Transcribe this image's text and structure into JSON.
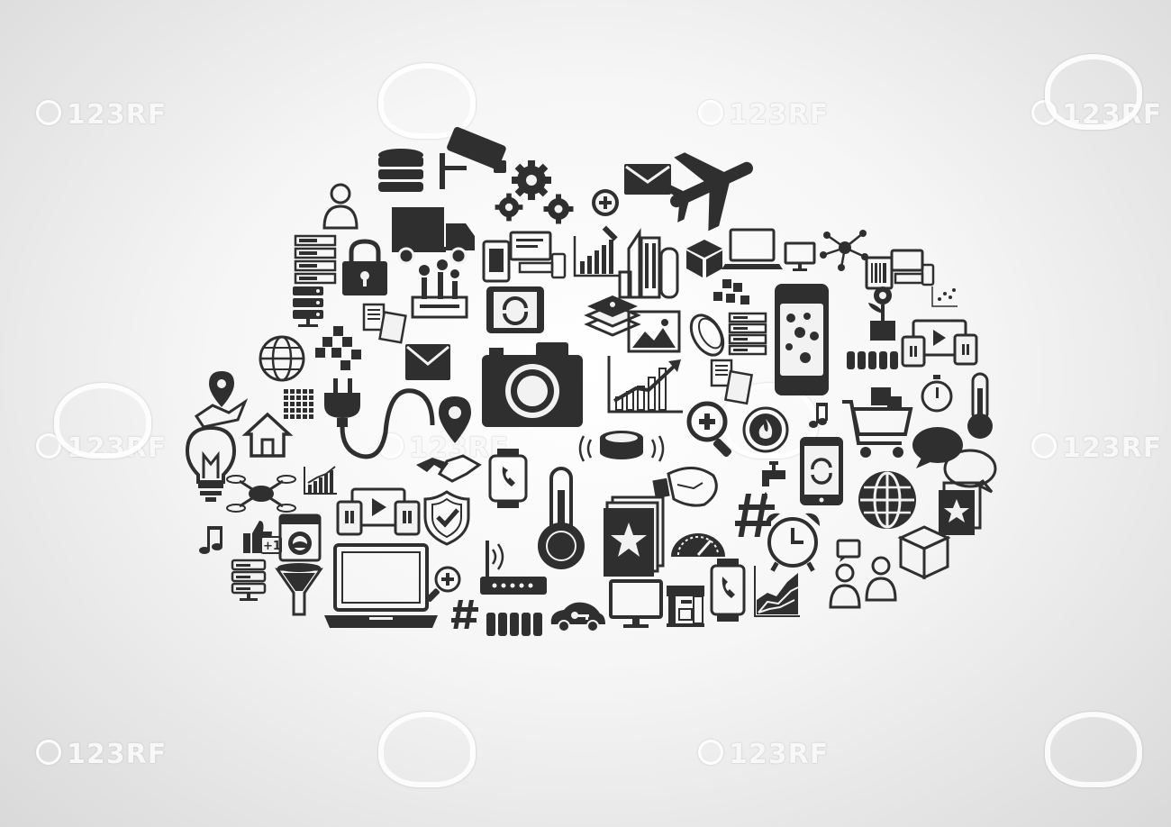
{
  "watermark": {
    "text": "123RF",
    "items": [
      {
        "text": "123RF"
      },
      {
        "text": "123RF"
      },
      {
        "text": "123RF"
      },
      {
        "text": "123RF"
      },
      {
        "text": "123RF"
      },
      {
        "text": "123RF"
      },
      {
        "text": "123RF"
      },
      {
        "text": "123RF"
      }
    ]
  },
  "colors": {
    "icon": "#2f2f2f",
    "background_center": "#ffffff",
    "background_edge": "#d9d9d9"
  },
  "icons": [
    "database-icon",
    "cctv-camera-icon",
    "gear-icon",
    "gear-icon",
    "gear-icon",
    "envelope-icon",
    "airplane-icon",
    "user-icon",
    "delivery-truck-icon",
    "zoom-in-icon",
    "devices-icon",
    "bar-chart-icon",
    "city-buildings-icon",
    "package-icon",
    "laptop-icon",
    "monitor-icon",
    "network-hub-icon",
    "server-rack-icon",
    "padlock-icon",
    "factory-icon",
    "barcode-devices-icon",
    "tablet-sync-icon",
    "layers-icon",
    "cubes-icon",
    "smartwatch-icon",
    "plant-icon",
    "scatter-chart-icon",
    "globe-icon",
    "documents-icon",
    "photo-icon",
    "coin-icon",
    "media-player-icon",
    "envelope-icon",
    "photo-camera-icon",
    "growth-chart-icon",
    "battery-icon",
    "map-location-icon",
    "plug-cable-icon",
    "location-pin-icon",
    "zoom-in-icon",
    "fire-sensor-icon",
    "shopping-cart-icon",
    "stopwatch-icon",
    "thermometer-icon",
    "light-bulb-icon",
    "house-icon",
    "handshake-icon",
    "smart-hockey-puck-icon",
    "chat-icon",
    "drone-icon",
    "bar-chart-icon",
    "smartwatch-phone-icon",
    "smart-bulb-icon",
    "water-tap-icon",
    "music-note-icon",
    "phone-sync-icon",
    "globe-icon",
    "media-player-icon",
    "shield-check-icon",
    "thermometer-icon",
    "star-cards-icon",
    "hash-icon",
    "alarm-clock-icon",
    "thumbs-up-icon",
    "washing-machine-icon",
    "speedometer-icon",
    "music-note-icon",
    "server-rack-icon",
    "funnel-icon",
    "laptop-icon",
    "wifi-router-icon",
    "zoom-in-icon",
    "monitor-icon",
    "coffee-machine-icon",
    "smartwatch-phone-icon",
    "area-chart-icon",
    "users-icon",
    "package-icon",
    "hash-icon",
    "battery-icon",
    "smart-car-icon"
  ]
}
